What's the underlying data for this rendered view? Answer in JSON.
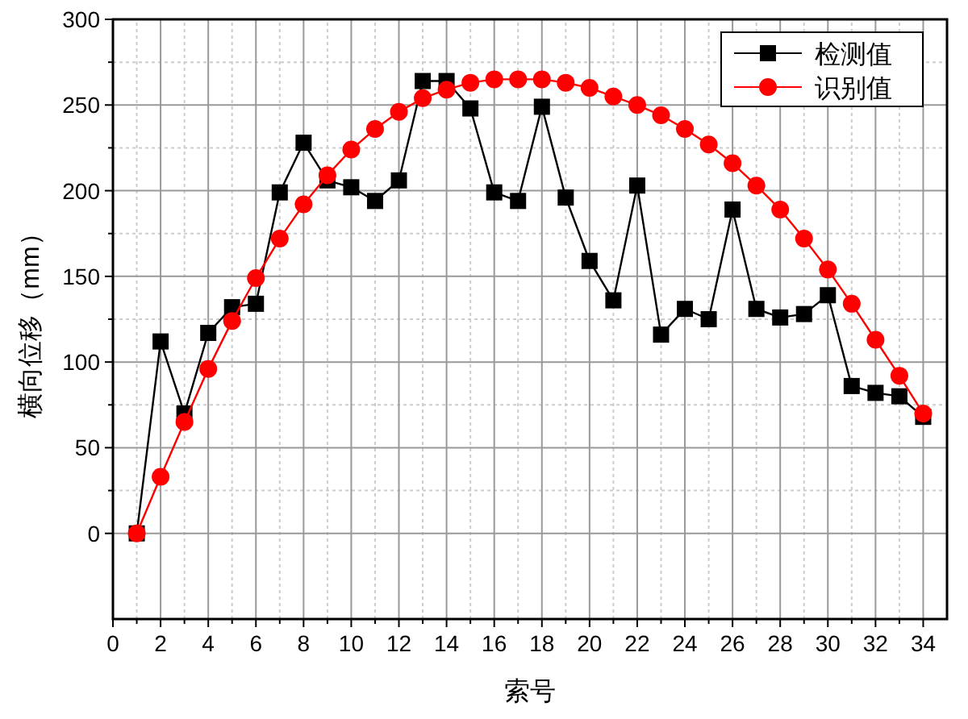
{
  "chart_data": {
    "type": "line",
    "xlabel": "索号",
    "ylabel": "横向位移（mm）",
    "x": [
      1,
      2,
      3,
      4,
      5,
      6,
      7,
      8,
      9,
      10,
      11,
      12,
      13,
      14,
      15,
      16,
      17,
      18,
      19,
      20,
      21,
      22,
      23,
      24,
      25,
      26,
      27,
      28,
      29,
      30,
      31,
      32,
      33,
      34
    ],
    "series": [
      {
        "name": "检测值",
        "color": "#000000",
        "marker": "square",
        "values": [
          0,
          112,
          70,
          117,
          132,
          134,
          199,
          228,
          206,
          202,
          194,
          206,
          264,
          264,
          248,
          199,
          194,
          249,
          196,
          159,
          136,
          203,
          116,
          131,
          125,
          189,
          131,
          126,
          128,
          139,
          86,
          82,
          80,
          68
        ]
      },
      {
        "name": "识别值",
        "color": "#ff0000",
        "marker": "circle",
        "values": [
          0,
          33,
          65,
          96,
          124,
          149,
          172,
          192,
          209,
          224,
          236,
          246,
          254,
          259,
          263,
          265,
          265,
          265,
          263,
          260,
          255,
          250,
          244,
          236,
          227,
          216,
          203,
          189,
          172,
          154,
          134,
          113,
          92,
          70
        ]
      }
    ],
    "xlim": [
      0,
      35
    ],
    "xticks": [
      0,
      2,
      4,
      6,
      8,
      10,
      12,
      14,
      16,
      18,
      20,
      22,
      24,
      26,
      28,
      30,
      32,
      34
    ],
    "ylim": [
      -50,
      300
    ],
    "yticks": [
      0,
      50,
      100,
      150,
      200,
      250,
      300
    ],
    "grid": true,
    "legend": "top right",
    "line_style": "solid"
  }
}
